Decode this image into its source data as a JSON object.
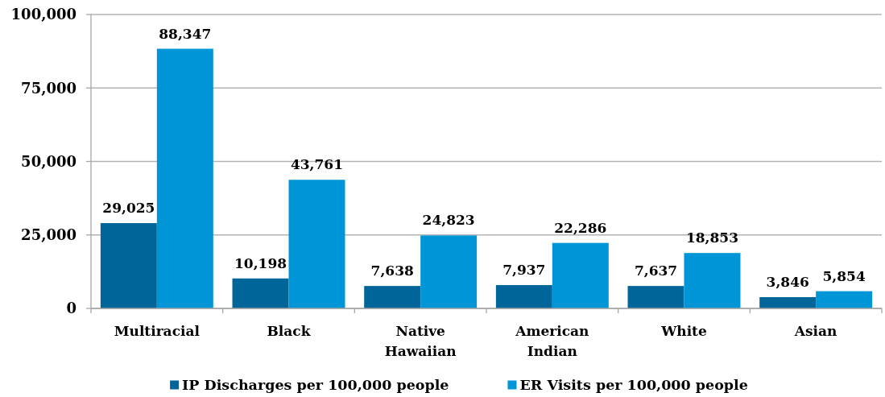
{
  "chart_data": {
    "type": "bar",
    "categories": [
      "Multiracial",
      "Black",
      "Native Hawaiian",
      "American Indian",
      "White",
      "Asian"
    ],
    "series": [
      {
        "name": "IP Discharges per 100,000 people",
        "color": "#006699",
        "values": [
          29025,
          10198,
          7638,
          7937,
          7637,
          3846
        ],
        "value_labels": [
          "29,025",
          "10,198",
          "7,638",
          "7,937",
          "7,637",
          "3,846"
        ]
      },
      {
        "name": "ER Visits per 100,000 people",
        "color": "#0095d6",
        "values": [
          88347,
          43761,
          24823,
          22286,
          18853,
          5854
        ],
        "value_labels": [
          "88,347",
          "43,761",
          "24,823",
          "22,286",
          "18,853",
          "5,854"
        ]
      }
    ],
    "ylim": [
      0,
      100000
    ],
    "yticks": [
      {
        "value": 0,
        "label": "0"
      },
      {
        "value": 25000,
        "label": "25,000"
      },
      {
        "value": 50000,
        "label": "50,000"
      },
      {
        "value": 75000,
        "label": "75,000"
      },
      {
        "value": 100000,
        "label": "100,000"
      }
    ],
    "grid": "y",
    "legend": "bottom"
  }
}
